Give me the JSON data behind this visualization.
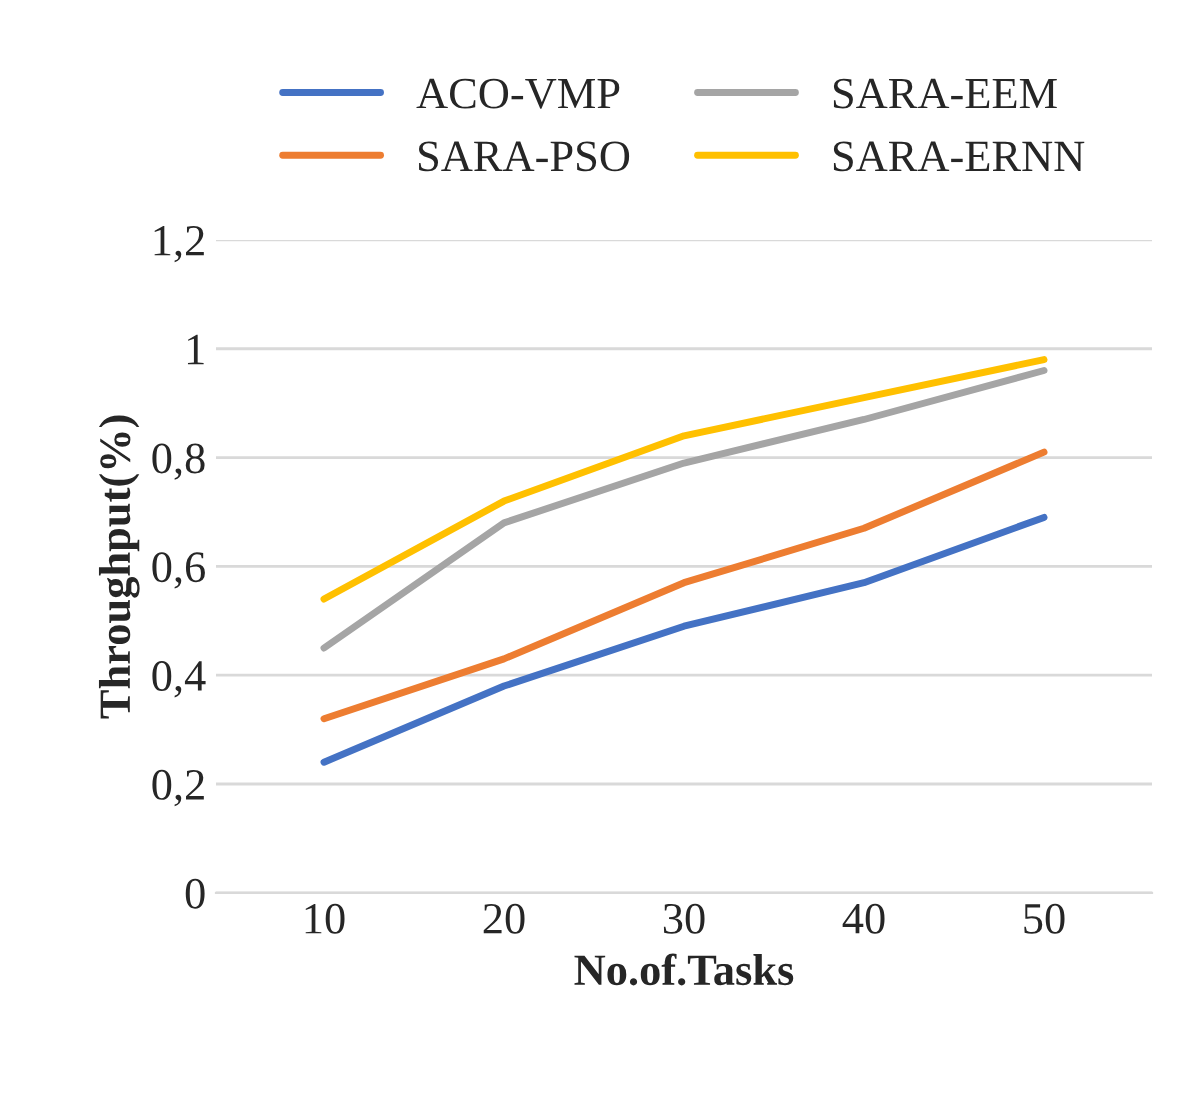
{
  "chart_data": {
    "type": "line",
    "xlabel": "No.of.Tasks",
    "ylabel": "Throughput(%)",
    "categories": [
      "10",
      "20",
      "30",
      "40",
      "50"
    ],
    "series": [
      {
        "name": "ACO-VMP",
        "color": "#4472c4",
        "values": [
          0.24,
          0.38,
          0.49,
          0.57,
          0.69
        ]
      },
      {
        "name": "SARA-PSO",
        "color": "#ed7d31",
        "values": [
          0.32,
          0.43,
          0.57,
          0.67,
          0.81
        ]
      },
      {
        "name": "SARA-EEM",
        "color": "#a5a5a5",
        "values": [
          0.45,
          0.68,
          0.79,
          0.87,
          0.96
        ]
      },
      {
        "name": "SARA-ERNN",
        "color": "#ffc000",
        "values": [
          0.54,
          0.72,
          0.84,
          0.91,
          0.98
        ]
      }
    ],
    "ylim": [
      0,
      1.2
    ],
    "yticks": [
      0,
      {
        "value": 0.2,
        "label": "0,2"
      },
      {
        "value": 0.4,
        "label": "0,4"
      },
      {
        "value": 0.6,
        "label": "0,6"
      },
      {
        "value": 0.8,
        "label": "0,8"
      },
      1,
      {
        "value": 1.2,
        "label": "1,2"
      }
    ],
    "grid": "y",
    "legend": "top",
    "marker": "none",
    "line_style": "solid"
  }
}
